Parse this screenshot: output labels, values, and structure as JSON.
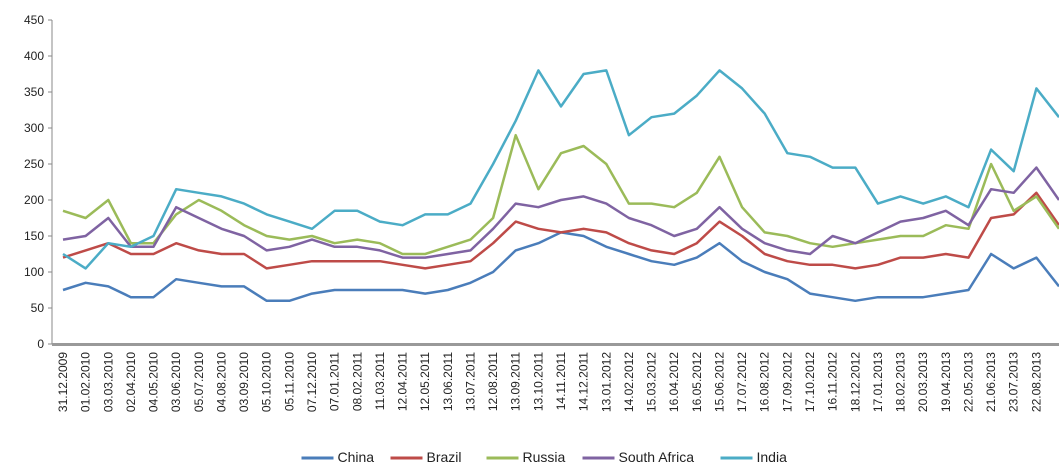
{
  "chart_data": {
    "type": "line",
    "categories": [
      "31.12.2009",
      "01.02.2010",
      "03.03.2010",
      "02.04.2010",
      "04.05.2010",
      "03.06.2010",
      "05.07.2010",
      "04.08.2010",
      "03.09.2010",
      "05.10.2010",
      "05.11.2010",
      "07.12.2010",
      "07.01.2011",
      "08.02.2011",
      "11.03.2011",
      "12.04.2011",
      "12.05.2011",
      "13.06.2011",
      "13.07.2011",
      "12.08.2011",
      "13.09.2011",
      "13.10.2011",
      "14.11.2011",
      "14.12.2011",
      "13.01.2012",
      "14.02.2012",
      "15.03.2012",
      "16.04.2012",
      "16.05.2012",
      "15.06.2012",
      "17.07.2012",
      "16.08.2012",
      "17.09.2012",
      "17.10.2012",
      "16.11.2012",
      "18.12.2012",
      "17.01.2013",
      "18.02.2013",
      "20.03.2013",
      "19.04.2013",
      "22.05.2013",
      "21.06.2013",
      "23.07.2013",
      "22.08.2013",
      null
    ],
    "series": [
      {
        "name": "China",
        "color": "#4a7dba",
        "values": [
          75,
          85,
          80,
          65,
          65,
          90,
          85,
          80,
          80,
          60,
          60,
          70,
          75,
          75,
          75,
          75,
          70,
          75,
          85,
          100,
          130,
          140,
          155,
          150,
          135,
          125,
          115,
          110,
          120,
          140,
          115,
          100,
          90,
          70,
          65,
          60,
          65,
          65,
          65,
          70,
          75,
          125,
          105,
          120,
          80
        ]
      },
      {
        "name": "Brazil",
        "color": "#be4b48",
        "values": [
          120,
          130,
          140,
          125,
          125,
          140,
          130,
          125,
          125,
          105,
          110,
          115,
          115,
          115,
          115,
          110,
          105,
          110,
          115,
          140,
          170,
          160,
          155,
          160,
          155,
          140,
          130,
          125,
          140,
          170,
          150,
          125,
          115,
          110,
          110,
          105,
          110,
          120,
          120,
          125,
          120,
          175,
          180,
          210,
          165
        ]
      },
      {
        "name": "Russia",
        "color": "#9bbb59",
        "values": [
          185,
          175,
          200,
          140,
          140,
          180,
          200,
          185,
          165,
          150,
          145,
          150,
          140,
          145,
          140,
          125,
          125,
          135,
          145,
          175,
          290,
          215,
          265,
          275,
          250,
          195,
          195,
          190,
          210,
          260,
          190,
          155,
          150,
          140,
          135,
          140,
          145,
          150,
          150,
          165,
          160,
          250,
          185,
          205,
          160
        ]
      },
      {
        "name": "South Africa",
        "color": "#7f63a2",
        "values": [
          145,
          150,
          175,
          135,
          135,
          190,
          175,
          160,
          150,
          130,
          135,
          145,
          135,
          135,
          130,
          120,
          120,
          125,
          130,
          160,
          195,
          190,
          200,
          205,
          195,
          175,
          165,
          150,
          160,
          190,
          160,
          140,
          130,
          125,
          150,
          140,
          155,
          170,
          175,
          185,
          165,
          215,
          210,
          245,
          200
        ]
      },
      {
        "name": "India",
        "color": "#4bacc6",
        "values": [
          125,
          105,
          140,
          135,
          150,
          215,
          210,
          205,
          195,
          180,
          170,
          160,
          185,
          185,
          170,
          165,
          180,
          180,
          195,
          250,
          310,
          380,
          330,
          375,
          380,
          290,
          315,
          320,
          345,
          380,
          355,
          320,
          265,
          260,
          245,
          245,
          195,
          205,
          195,
          205,
          190,
          270,
          240,
          355,
          315
        ]
      }
    ],
    "ylim": [
      0,
      450
    ],
    "yticks": [
      0,
      50,
      100,
      150,
      200,
      250,
      300,
      350,
      400,
      450
    ],
    "legend": "bottom"
  }
}
